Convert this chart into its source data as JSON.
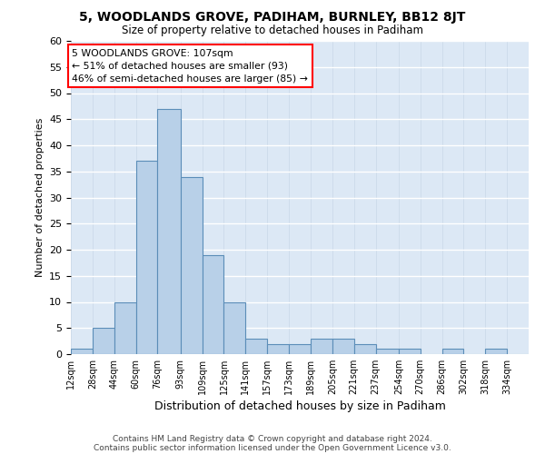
{
  "title1": "5, WOODLANDS GROVE, PADIHAM, BURNLEY, BB12 8JT",
  "title2": "Size of property relative to detached houses in Padiham",
  "xlabel": "Distribution of detached houses by size in Padiham",
  "ylabel": "Number of detached properties",
  "bin_labels": [
    "12sqm",
    "28sqm",
    "44sqm",
    "60sqm",
    "76sqm",
    "93sqm",
    "109sqm",
    "125sqm",
    "141sqm",
    "157sqm",
    "173sqm",
    "189sqm",
    "205sqm",
    "221sqm",
    "237sqm",
    "254sqm",
    "270sqm",
    "286sqm",
    "302sqm",
    "318sqm",
    "334sqm"
  ],
  "bin_edges": [
    12,
    28,
    44,
    60,
    76,
    93,
    109,
    125,
    141,
    157,
    173,
    189,
    205,
    221,
    237,
    254,
    270,
    286,
    302,
    318,
    334,
    350
  ],
  "counts": [
    1,
    5,
    10,
    37,
    47,
    34,
    19,
    10,
    3,
    2,
    2,
    3,
    3,
    2,
    1,
    1,
    0,
    1,
    0,
    1,
    0
  ],
  "bar_color": "#b8d0e8",
  "bar_edge_color": "#5b8db8",
  "bg_color": "#dce8f5",
  "annotation_text": "5 WOODLANDS GROVE: 107sqm\n← 51% of detached houses are smaller (93)\n46% of semi-detached houses are larger (85) →",
  "ylim": [
    0,
    60
  ],
  "yticks": [
    0,
    5,
    10,
    15,
    20,
    25,
    30,
    35,
    40,
    45,
    50,
    55,
    60
  ],
  "footnote1": "Contains HM Land Registry data © Crown copyright and database right 2024.",
  "footnote2": "Contains public sector information licensed under the Open Government Licence v3.0."
}
